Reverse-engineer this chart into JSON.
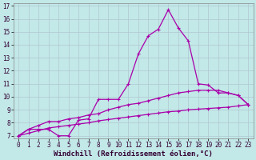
{
  "xlabel": "Windchill (Refroidissement éolien,°C)",
  "bg_color": "#c2e8e8",
  "line_color": "#aa00aa",
  "grid_color": "#b0c8d0",
  "xlim": [
    -0.5,
    23.5
  ],
  "ylim": [
    6.8,
    17.2
  ],
  "xticks": [
    0,
    1,
    2,
    3,
    4,
    5,
    6,
    7,
    8,
    9,
    10,
    11,
    12,
    13,
    14,
    15,
    16,
    17,
    18,
    19,
    20,
    21,
    22,
    23
  ],
  "yticks": [
    7,
    8,
    9,
    10,
    11,
    12,
    13,
    14,
    15,
    16,
    17
  ],
  "line1_x": [
    0,
    1,
    2,
    3,
    4,
    5,
    6,
    7,
    8,
    9,
    10,
    11,
    12,
    13,
    14,
    15,
    16,
    17,
    18,
    19,
    20,
    21,
    22,
    23
  ],
  "line1_y": [
    7.0,
    7.5,
    7.5,
    7.5,
    7.0,
    7.0,
    8.2,
    8.3,
    9.8,
    9.8,
    9.8,
    11.0,
    13.3,
    14.7,
    15.2,
    16.7,
    15.3,
    14.3,
    11.0,
    10.9,
    10.3,
    10.3,
    10.1,
    9.4
  ],
  "line2_x": [
    0,
    1,
    2,
    3,
    4,
    5,
    6,
    7,
    8,
    9,
    10,
    11,
    12,
    13,
    14,
    15,
    16,
    17,
    18,
    19,
    20,
    21,
    22,
    23
  ],
  "line2_y": [
    7.0,
    7.5,
    7.8,
    8.1,
    8.1,
    8.3,
    8.4,
    8.6,
    8.7,
    9.0,
    9.2,
    9.4,
    9.5,
    9.7,
    9.9,
    10.1,
    10.3,
    10.4,
    10.5,
    10.5,
    10.5,
    10.3,
    10.1,
    9.4
  ],
  "line3_x": [
    0,
    1,
    2,
    3,
    4,
    5,
    6,
    7,
    8,
    9,
    10,
    11,
    12,
    13,
    14,
    15,
    16,
    17,
    18,
    19,
    20,
    21,
    22,
    23
  ],
  "line3_y": [
    7.0,
    7.2,
    7.4,
    7.6,
    7.7,
    7.8,
    7.9,
    8.0,
    8.15,
    8.25,
    8.35,
    8.45,
    8.55,
    8.65,
    8.75,
    8.85,
    8.9,
    9.0,
    9.05,
    9.1,
    9.15,
    9.2,
    9.3,
    9.4
  ],
  "marker": "+",
  "markersize": 3,
  "linewidth": 0.9,
  "xlabel_fontsize": 6.5,
  "tick_fontsize": 5.5
}
